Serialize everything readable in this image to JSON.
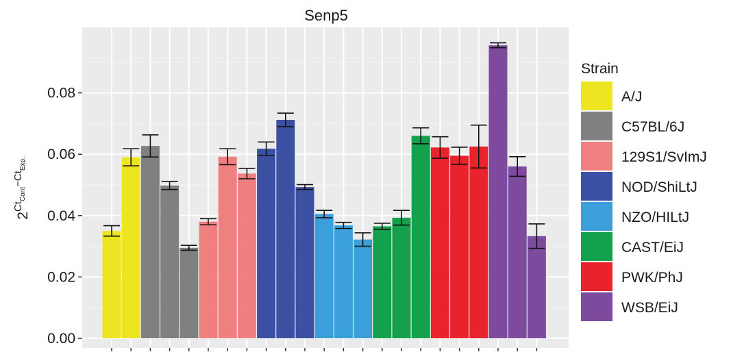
{
  "chart_data": {
    "type": "bar",
    "title": "Senp5",
    "ylabel": {
      "base": "2",
      "sup1": "Ct",
      "sub1": "Cont",
      "sup_mid": "−Ct",
      "sub2": "Exp."
    },
    "xlabel": "",
    "ylim": [
      0,
      0.1
    ],
    "yticks": [
      0.0,
      0.02,
      0.04,
      0.06,
      0.08
    ],
    "yticklabels": [
      "0.00",
      "0.02",
      "0.04",
      "0.06",
      "0.08"
    ],
    "grid": true,
    "legend": {
      "title": "Strain",
      "position": "right",
      "entries": [
        {
          "name": "A/J",
          "color": "#EEE522"
        },
        {
          "name": "C57BL/6J",
          "color": "#808080"
        },
        {
          "name": "129S1/SvImJ",
          "color": "#F08080"
        },
        {
          "name": "NOD/ShiLtJ",
          "color": "#3B4FA3"
        },
        {
          "name": "NZO/HILtJ",
          "color": "#3A9FDA"
        },
        {
          "name": "CAST/EiJ",
          "color": "#14A14E"
        },
        {
          "name": "PWK/PhJ",
          "color": "#E8232B"
        },
        {
          "name": "WSB/EiJ",
          "color": "#7D4A9E"
        }
      ]
    },
    "bars": [
      {
        "strain": "A/J",
        "value": 0.035,
        "err": 0.0017
      },
      {
        "strain": "A/J",
        "value": 0.059,
        "err": 0.0028
      },
      {
        "strain": "C57BL/6J",
        "value": 0.0627,
        "err": 0.0036
      },
      {
        "strain": "C57BL/6J",
        "value": 0.0498,
        "err": 0.0013
      },
      {
        "strain": "C57BL/6J",
        "value": 0.0295,
        "err": 0.0008
      },
      {
        "strain": "129S1/SvImJ",
        "value": 0.038,
        "err": 0.001
      },
      {
        "strain": "129S1/SvImJ",
        "value": 0.0592,
        "err": 0.0026
      },
      {
        "strain": "129S1/SvImJ",
        "value": 0.0537,
        "err": 0.0017
      },
      {
        "strain": "NOD/ShiLtJ",
        "value": 0.0618,
        "err": 0.0022
      },
      {
        "strain": "NOD/ShiLtJ",
        "value": 0.0712,
        "err": 0.0022
      },
      {
        "strain": "NOD/ShiLtJ",
        "value": 0.0493,
        "err": 0.0008
      },
      {
        "strain": "NZO/HILtJ",
        "value": 0.0405,
        "err": 0.0012
      },
      {
        "strain": "NZO/HILtJ",
        "value": 0.0368,
        "err": 0.001
      },
      {
        "strain": "NZO/HILtJ",
        "value": 0.0322,
        "err": 0.0022
      },
      {
        "strain": "CAST/EiJ",
        "value": 0.0365,
        "err": 0.001
      },
      {
        "strain": "CAST/EiJ",
        "value": 0.0393,
        "err": 0.0024
      },
      {
        "strain": "CAST/EiJ",
        "value": 0.066,
        "err": 0.0026
      },
      {
        "strain": "PWK/PhJ",
        "value": 0.0622,
        "err": 0.0035
      },
      {
        "strain": "PWK/PhJ",
        "value": 0.0595,
        "err": 0.0028
      },
      {
        "strain": "PWK/PhJ",
        "value": 0.0625,
        "err": 0.007
      },
      {
        "strain": "WSB/EiJ",
        "value": 0.0955,
        "err": 0.0008
      },
      {
        "strain": "WSB/EiJ",
        "value": 0.056,
        "err": 0.0032
      },
      {
        "strain": "WSB/EiJ",
        "value": 0.0333,
        "err": 0.004
      }
    ]
  }
}
